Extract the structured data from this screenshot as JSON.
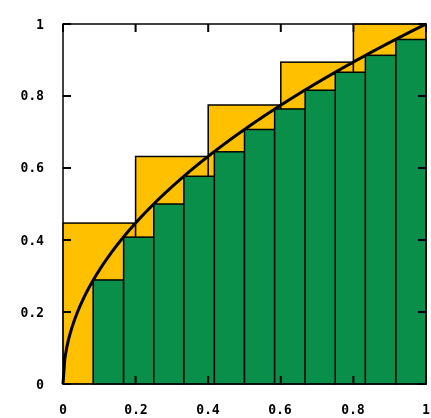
{
  "chart_data": {
    "type": "bar",
    "title": "",
    "xlabel": "",
    "ylabel": "",
    "xlim": [
      0,
      1
    ],
    "ylim": [
      0,
      1
    ],
    "grid": false,
    "x_ticks": [
      "0",
      "0.2",
      "0.4",
      "0.6",
      "0.8",
      "1"
    ],
    "y_ticks": [
      "0",
      "0.2",
      "0.4",
      "0.6",
      "0.8",
      "1"
    ],
    "curve": {
      "function": "sqrt(x)",
      "color": "#000000"
    },
    "upper_bars": {
      "color": "#FFC000",
      "edges": [
        0,
        0.2,
        0.4,
        0.6,
        0.8,
        1
      ],
      "heights": [
        0.447,
        0.632,
        0.775,
        0.894,
        1.0
      ]
    },
    "lower_bars": {
      "color": "#0A8F4B",
      "edges": [
        0.083,
        0.167,
        0.25,
        0.333,
        0.417,
        0.5,
        0.583,
        0.667,
        0.75,
        0.833,
        0.917,
        1
      ],
      "heights": [
        0.289,
        0.408,
        0.5,
        0.577,
        0.645,
        0.707,
        0.764,
        0.816,
        0.866,
        0.913,
        0.957
      ]
    }
  }
}
